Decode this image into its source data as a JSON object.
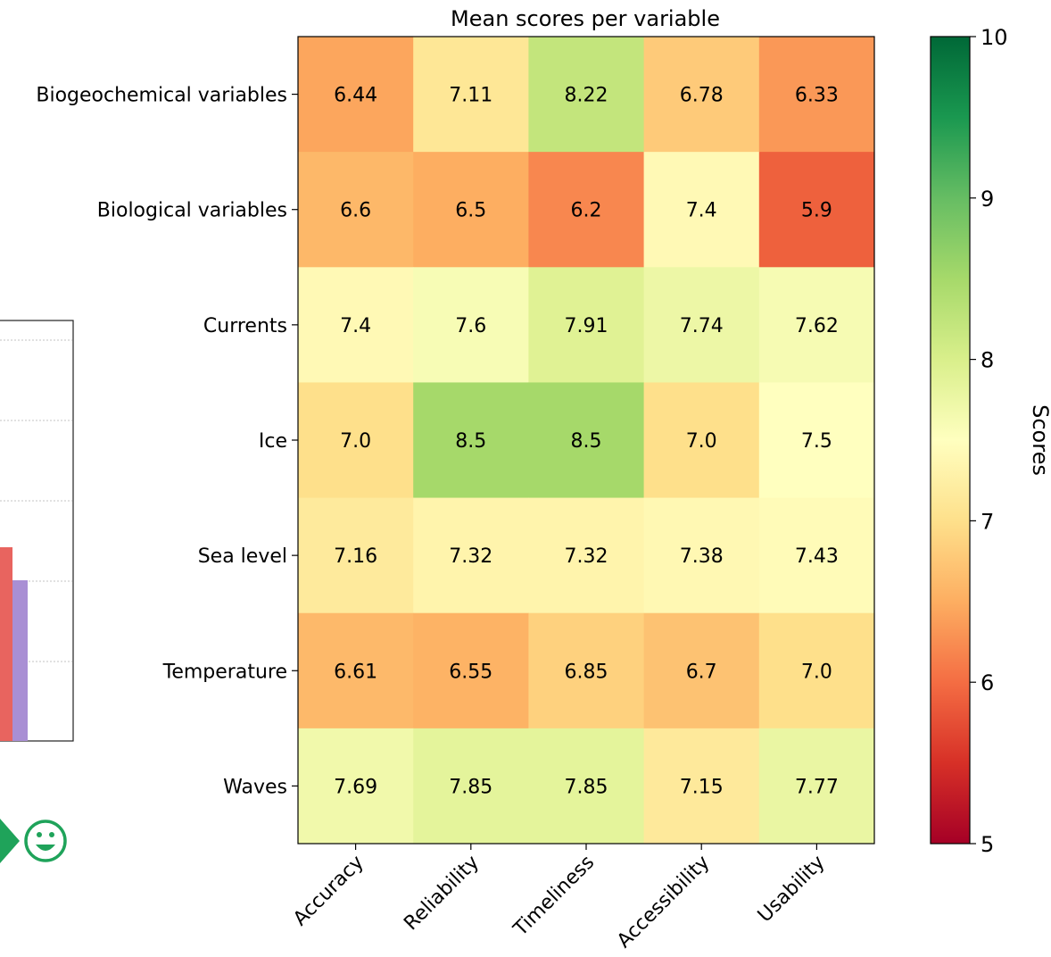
{
  "chart_data": {
    "type": "heatmap",
    "title": "Mean scores per variable",
    "rows": [
      "Biogeochemical variables",
      "Biological variables",
      "Currents",
      "Ice",
      "Sea level",
      "Temperature",
      "Waves"
    ],
    "columns": [
      "Accuracy",
      "Reliability",
      "Timeliness",
      "Accessibility",
      "Usability"
    ],
    "values": [
      [
        6.44,
        7.11,
        8.22,
        6.78,
        6.33
      ],
      [
        6.6,
        6.5,
        6.2,
        7.4,
        5.9
      ],
      [
        7.4,
        7.6,
        7.91,
        7.74,
        7.62
      ],
      [
        7.0,
        8.5,
        8.5,
        7.0,
        7.5
      ],
      [
        7.16,
        7.32,
        7.32,
        7.38,
        7.43
      ],
      [
        6.61,
        6.55,
        6.85,
        6.7,
        7.0
      ],
      [
        7.69,
        7.85,
        7.85,
        7.15,
        7.77
      ]
    ],
    "value_labels": [
      [
        "6.44",
        "7.11",
        "8.22",
        "6.78",
        "6.33"
      ],
      [
        "6.6",
        "6.5",
        "6.2",
        "7.4",
        "5.9"
      ],
      [
        "7.4",
        "7.6",
        "7.91",
        "7.74",
        "7.62"
      ],
      [
        "7.0",
        "8.5",
        "8.5",
        "7.0",
        "7.5"
      ],
      [
        "7.16",
        "7.32",
        "7.32",
        "7.38",
        "7.43"
      ],
      [
        "6.61",
        "6.55",
        "6.85",
        "6.7",
        "7.0"
      ],
      [
        "7.69",
        "7.85",
        "7.85",
        "7.15",
        "7.77"
      ]
    ],
    "colormap": "RdYlGn",
    "colorbar": {
      "label": "Scores",
      "range": [
        5,
        10
      ],
      "ticks": [
        5,
        6,
        7,
        8,
        9,
        10
      ]
    }
  },
  "partial_chart": {
    "bar_colors": [
      "#e8645f",
      "#a98fd4"
    ],
    "grid": true
  },
  "emoji_marker": {
    "icon": "smiley-face-icon",
    "color": "#1fa35a",
    "arrow_color": "#1fa35a"
  }
}
